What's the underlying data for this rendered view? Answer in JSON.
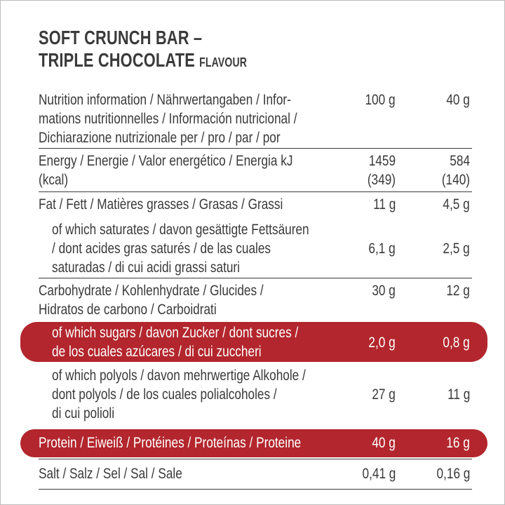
{
  "title": {
    "line1": "SOFT CRUNCH BAR –",
    "line2": "TRIPLE CHOCOLATE",
    "suffix": "FLAVOUR"
  },
  "header": {
    "label_lines": [
      "Nutrition information / Nährwertangaben / Infor-",
      "mations nutritionnelles / Información nutricional /",
      "Dichiarazione nutrizionale per / pro / par / por"
    ],
    "col1": "100 g",
    "col2": "40 g"
  },
  "rows": {
    "energy": {
      "label_lines": [
        "Energy / Energie / Valor energético / Energia kJ",
        "(kcal)"
      ],
      "v1_lines": [
        "1459",
        "(349)"
      ],
      "v2_lines": [
        "584",
        "(140)"
      ]
    },
    "fat": {
      "label_lines": [
        "Fat / Fett / Matières grasses / Grasas / Grassi"
      ],
      "v1": "11 g",
      "v2": "4,5 g"
    },
    "saturates": {
      "label_lines": [
        "of which saturates / davon gesättigte Fettsäuren",
        "/ dont acides gras saturés / de las cuales",
        "saturadas / di cui acidi grassi saturi"
      ],
      "v1": "6,1 g",
      "v2": "2,5 g"
    },
    "carbohydrate": {
      "label_lines": [
        "Carbohydrate / Kohlenhydrate / Glucides /",
        "Hidratos de carbono / Carboidrati"
      ],
      "v1": "30 g",
      "v2": "12 g"
    },
    "sugars": {
      "label_lines": [
        "of which sugars / davon Zucker / dont sucres /",
        "de los cuales azúcares / di cui zuccheri"
      ],
      "v1": "2,0 g",
      "v2": "0,8 g"
    },
    "polyols": {
      "label_lines": [
        "of which polyols / davon mehrwertige Alkohole /",
        "dont polyols / de los cuales polialcoholes /",
        "di cui polioli"
      ],
      "v1": "27 g",
      "v2": "11 g"
    },
    "protein": {
      "label_lines": [
        "Protein / Eiweiß / Protéines / Proteínas / Proteine"
      ],
      "v1": "40 g",
      "v2": "16 g"
    },
    "salt": {
      "label_lines": [
        "Salt / Salz / Sel / Sal / Sale"
      ],
      "v1": "0,41 g",
      "v2": "0,16 g"
    }
  },
  "colors": {
    "highlight": "#b3262d",
    "text": "#3a3a3a"
  }
}
